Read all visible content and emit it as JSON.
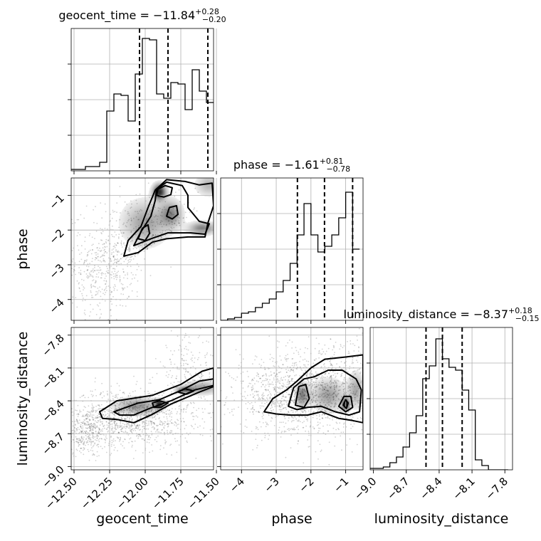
{
  "chart_data": {
    "type": "corner",
    "parameters": [
      {
        "name": "geocent_time",
        "title_text": "geocent_time = ",
        "median": "−11.84",
        "err_plus": "+0.28",
        "err_minus": "−0.20",
        "range": [
          -12.52,
          -11.52
        ],
        "ticks": [
          -12.5,
          -12.25,
          -12.0,
          -11.75,
          -11.5
        ],
        "tick_labels": [
          "−12.50",
          "−12.25",
          "−12.00",
          "−11.75",
          "−11.50"
        ],
        "quantiles": [
          -12.04,
          -11.84,
          -11.56
        ],
        "hist_bin_edges": [
          -12.52,
          -12.47,
          -12.42,
          -12.37,
          -12.32,
          -12.27,
          -12.22,
          -12.17,
          -12.12,
          -12.07,
          -12.02,
          -11.97,
          -11.92,
          -11.87,
          -11.82,
          -11.77,
          -11.72,
          -11.67,
          -11.62,
          -11.57,
          -11.52
        ],
        "hist_density": [
          0.01,
          0.01,
          0.03,
          0.03,
          0.06,
          0.42,
          0.54,
          0.53,
          0.35,
          0.68,
          0.93,
          0.92,
          0.54,
          0.51,
          0.62,
          0.61,
          0.43,
          0.71,
          0.56,
          0.48
        ]
      },
      {
        "name": "phase",
        "title_text": "phase = ",
        "median": "−1.61",
        "err_plus": "+0.81",
        "err_minus": "−0.78",
        "range": [
          -4.6,
          -0.5
        ],
        "ticks": [
          -4,
          -3,
          -2,
          -1
        ],
        "tick_labels": [
          "−4",
          "−3",
          "−2",
          "−1"
        ],
        "quantiles": [
          -2.39,
          -1.61,
          -0.8
        ],
        "hist_bin_edges": [
          -4.6,
          -4.4,
          -4.2,
          -4.0,
          -3.8,
          -3.6,
          -3.4,
          -3.2,
          -3.0,
          -2.8,
          -2.6,
          -2.4,
          -2.2,
          -2.0,
          -1.8,
          -1.6,
          -1.4,
          -1.2,
          -1.0,
          -0.8,
          -0.6
        ],
        "hist_density": [
          0.0,
          0.01,
          0.02,
          0.05,
          0.06,
          0.09,
          0.12,
          0.15,
          0.2,
          0.28,
          0.4,
          0.6,
          0.82,
          0.6,
          0.48,
          0.52,
          0.6,
          0.72,
          0.9,
          0.5
        ],
        "joint_label": "phase"
      },
      {
        "name": "luminosity_distance",
        "title_text": "luminosity_distance = ",
        "median": "−8.37",
        "err_plus": "+0.18",
        "err_minus": "−0.15",
        "range": [
          -9.03,
          -7.73
        ],
        "ticks": [
          -9.0,
          -8.7,
          -8.4,
          -8.1,
          -7.8
        ],
        "tick_labels": [
          "−9.0",
          "−8.7",
          "−8.4",
          "−8.1",
          "−7.8"
        ],
        "quantiles": [
          -8.52,
          -8.37,
          -8.19
        ],
        "hist_bin_edges": [
          -9.03,
          -8.97,
          -8.91,
          -8.85,
          -8.79,
          -8.73,
          -8.67,
          -8.61,
          -8.55,
          -8.49,
          -8.43,
          -8.37,
          -8.31,
          -8.25,
          -8.19,
          -8.13,
          -8.07,
          -8.01,
          -7.95,
          -7.89,
          -7.83,
          -7.77
        ],
        "hist_density": [
          0.01,
          0.01,
          0.02,
          0.05,
          0.09,
          0.16,
          0.26,
          0.38,
          0.64,
          0.73,
          0.92,
          0.78,
          0.72,
          0.7,
          0.56,
          0.42,
          0.07,
          0.03,
          0.0,
          0.0,
          0.0
        ]
      }
    ],
    "x_axis_labels": [
      "geocent_time",
      "phase",
      "luminosity_distance"
    ],
    "y_axis_labels": [
      "phase",
      "luminosity_distance"
    ],
    "grid": true,
    "joint_panels": [
      {
        "x_param": "geocent_time",
        "y_param": "phase",
        "scatter_regions": [
          {
            "cx": -11.95,
            "cy": -2.55,
            "sx": 0.22,
            "sy": 0.75,
            "n": 1000,
            "min_y_fn": "phase_floor"
          },
          {
            "cx": -12.3,
            "cy": -3.3,
            "sx": 0.15,
            "sy": 0.55,
            "n": 350
          }
        ],
        "density_blobs": [
          {
            "cx": -11.9,
            "cy": -0.9,
            "sx": 0.03,
            "sy": 0.15,
            "w": 1.0
          },
          {
            "cx": -11.82,
            "cy": -1.55,
            "sx": 0.05,
            "sy": 0.25,
            "w": 0.55
          },
          {
            "cx": -11.6,
            "cy": -1.95,
            "sx": 0.06,
            "sy": 0.12,
            "w": 0.6
          },
          {
            "cx": -12.0,
            "cy": -1.8,
            "sx": 0.1,
            "sy": 0.4,
            "w": 0.45
          },
          {
            "cx": -11.55,
            "cy": -0.7,
            "sx": 0.06,
            "sy": 0.2,
            "w": 0.35
          }
        ],
        "contour_levels": [
          [
            [
              -12.15,
              -2.75
            ],
            [
              -12.12,
              -2.3
            ],
            [
              -12.03,
              -1.9
            ],
            [
              -11.98,
              -1.35
            ],
            [
              -11.93,
              -0.85
            ],
            [
              -11.85,
              -0.55
            ],
            [
              -11.72,
              -0.6
            ],
            [
              -11.62,
              -0.7
            ],
            [
              -11.53,
              -0.65
            ],
            [
              -11.52,
              -1.3
            ],
            [
              -11.56,
              -1.8
            ],
            [
              -11.58,
              -2.2
            ],
            [
              -11.7,
              -2.2
            ],
            [
              -11.85,
              -2.25
            ],
            [
              -11.95,
              -2.35
            ],
            [
              -12.05,
              -2.65
            ]
          ],
          [
            [
              -12.08,
              -2.45
            ],
            [
              -12.03,
              -2.05
            ],
            [
              -11.96,
              -1.6
            ],
            [
              -11.93,
              -1.15
            ],
            [
              -11.92,
              -0.82
            ],
            [
              -11.85,
              -0.62
            ],
            [
              -11.74,
              -0.72
            ],
            [
              -11.7,
              -1.0
            ],
            [
              -11.7,
              -1.35
            ],
            [
              -11.62,
              -1.75
            ],
            [
              -11.55,
              -1.82
            ],
            [
              -11.58,
              -2.12
            ],
            [
              -11.68,
              -2.08
            ],
            [
              -11.84,
              -2.08
            ],
            [
              -11.96,
              -2.25
            ]
          ],
          [
            [
              -11.92,
              -1.0
            ],
            [
              -11.91,
              -0.82
            ],
            [
              -11.86,
              -0.72
            ],
            [
              -11.81,
              -0.78
            ],
            [
              -11.82,
              -0.98
            ],
            [
              -11.87,
              -1.05
            ]
          ],
          [
            [
              -11.85,
              -1.6
            ],
            [
              -11.83,
              -1.35
            ],
            [
              -11.78,
              -1.3
            ],
            [
              -11.77,
              -1.55
            ],
            [
              -11.81,
              -1.68
            ]
          ],
          [
            [
              -12.05,
              -2.25
            ],
            [
              -12.02,
              -1.95
            ],
            [
              -11.98,
              -1.85
            ],
            [
              -11.97,
              -2.1
            ],
            [
              -12.0,
              -2.3
            ]
          ]
        ]
      },
      {
        "x_param": "geocent_time",
        "y_param": "luminosity_distance",
        "scatter_regions": [
          {
            "cx": -12.1,
            "cy": -8.55,
            "sx": 0.22,
            "sy": 0.13,
            "n": 1100
          },
          {
            "cx": -12.4,
            "cy": -8.7,
            "sx": 0.1,
            "sy": 0.1,
            "n": 300
          },
          {
            "cx": -11.7,
            "cy": -8.15,
            "sx": 0.1,
            "sy": 0.18,
            "n": 200
          }
        ],
        "density_blobs": [
          {
            "cx": -11.9,
            "cy": -8.43,
            "sx": 0.02,
            "sy": 0.025,
            "w": 1.0
          },
          {
            "cx": -11.72,
            "cy": -8.3,
            "sx": 0.04,
            "sy": 0.02,
            "w": 0.7
          },
          {
            "cx": -12.05,
            "cy": -8.45,
            "sx": 0.1,
            "sy": 0.05,
            "w": 0.5
          },
          {
            "cx": -11.6,
            "cy": -8.28,
            "sx": 0.08,
            "sy": 0.04,
            "w": 0.45
          }
        ],
        "contour_levels": [
          [
            [
              -12.32,
              -8.5
            ],
            [
              -12.2,
              -8.4
            ],
            [
              -11.95,
              -8.35
            ],
            [
              -11.75,
              -8.25
            ],
            [
              -11.6,
              -8.13
            ],
            [
              -11.52,
              -8.1
            ],
            [
              -11.52,
              -8.27
            ],
            [
              -11.62,
              -8.32
            ],
            [
              -11.82,
              -8.43
            ],
            [
              -11.96,
              -8.53
            ],
            [
              -12.08,
              -8.6
            ],
            [
              -12.2,
              -8.57
            ],
            [
              -12.3,
              -8.56
            ]
          ],
          [
            [
              -12.22,
              -8.5
            ],
            [
              -12.05,
              -8.42
            ],
            [
              -11.9,
              -8.39
            ],
            [
              -11.74,
              -8.3
            ],
            [
              -11.62,
              -8.22
            ],
            [
              -11.52,
              -8.2
            ],
            [
              -11.52,
              -8.26
            ],
            [
              -11.65,
              -8.3
            ],
            [
              -11.82,
              -8.4
            ],
            [
              -11.97,
              -8.47
            ],
            [
              -12.08,
              -8.53
            ],
            [
              -12.18,
              -8.53
            ]
          ],
          [
            [
              -11.95,
              -8.42
            ],
            [
              -11.9,
              -8.4
            ],
            [
              -11.84,
              -8.42
            ],
            [
              -11.89,
              -8.46
            ],
            [
              -11.94,
              -8.46
            ]
          ],
          [
            [
              -11.77,
              -8.32
            ],
            [
              -11.72,
              -8.29
            ],
            [
              -11.66,
              -8.31
            ],
            [
              -11.71,
              -8.34
            ]
          ]
        ]
      },
      {
        "x_param": "phase",
        "y_param": "luminosity_distance",
        "scatter_regions": [
          {
            "cx": -2.4,
            "cy": -8.35,
            "sx": 0.9,
            "sy": 0.18,
            "n": 1200
          },
          {
            "cx": -1.2,
            "cy": -8.25,
            "sx": 0.6,
            "sy": 0.22,
            "n": 400
          }
        ],
        "density_blobs": [
          {
            "cx": -1.0,
            "cy": -8.43,
            "sx": 0.07,
            "sy": 0.035,
            "w": 1.0
          },
          {
            "cx": -2.25,
            "cy": -8.35,
            "sx": 0.12,
            "sy": 0.07,
            "w": 0.6
          },
          {
            "cx": -1.5,
            "cy": -8.35,
            "sx": 0.3,
            "sy": 0.09,
            "w": 0.45
          },
          {
            "cx": -0.7,
            "cy": -8.3,
            "sx": 0.15,
            "sy": 0.1,
            "w": 0.4
          }
        ],
        "contour_levels": [
          [
            [
              -3.35,
              -8.5
            ],
            [
              -3.1,
              -8.38
            ],
            [
              -2.7,
              -8.3
            ],
            [
              -2.4,
              -8.22
            ],
            [
              -2.0,
              -8.1
            ],
            [
              -1.6,
              -8.02
            ],
            [
              -1.0,
              -8.0
            ],
            [
              -0.5,
              -7.98
            ],
            [
              -0.5,
              -8.6
            ],
            [
              -0.8,
              -8.58
            ],
            [
              -1.2,
              -8.56
            ],
            [
              -1.7,
              -8.5
            ],
            [
              -2.1,
              -8.53
            ],
            [
              -2.6,
              -8.53
            ],
            [
              -3.0,
              -8.52
            ]
          ],
          [
            [
              -2.65,
              -8.45
            ],
            [
              -2.5,
              -8.28
            ],
            [
              -2.2,
              -8.2
            ],
            [
              -1.9,
              -8.18
            ],
            [
              -1.5,
              -8.12
            ],
            [
              -1.1,
              -8.12
            ],
            [
              -0.7,
              -8.2
            ],
            [
              -0.55,
              -8.3
            ],
            [
              -0.6,
              -8.5
            ],
            [
              -0.9,
              -8.53
            ],
            [
              -1.3,
              -8.5
            ],
            [
              -1.7,
              -8.45
            ],
            [
              -2.1,
              -8.46
            ],
            [
              -2.4,
              -8.48
            ]
          ],
          [
            [
              -2.45,
              -8.44
            ],
            [
              -2.35,
              -8.27
            ],
            [
              -2.15,
              -8.25
            ],
            [
              -2.05,
              -8.38
            ],
            [
              -2.2,
              -8.46
            ]
          ],
          [
            [
              -1.2,
              -8.45
            ],
            [
              -1.05,
              -8.36
            ],
            [
              -0.85,
              -8.36
            ],
            [
              -0.8,
              -8.46
            ],
            [
              -1.0,
              -8.5
            ]
          ],
          [
            [
              -1.07,
              -8.44
            ],
            [
              -1.0,
              -8.39
            ],
            [
              -0.93,
              -8.42
            ],
            [
              -0.98,
              -8.47
            ]
          ]
        ]
      }
    ]
  }
}
